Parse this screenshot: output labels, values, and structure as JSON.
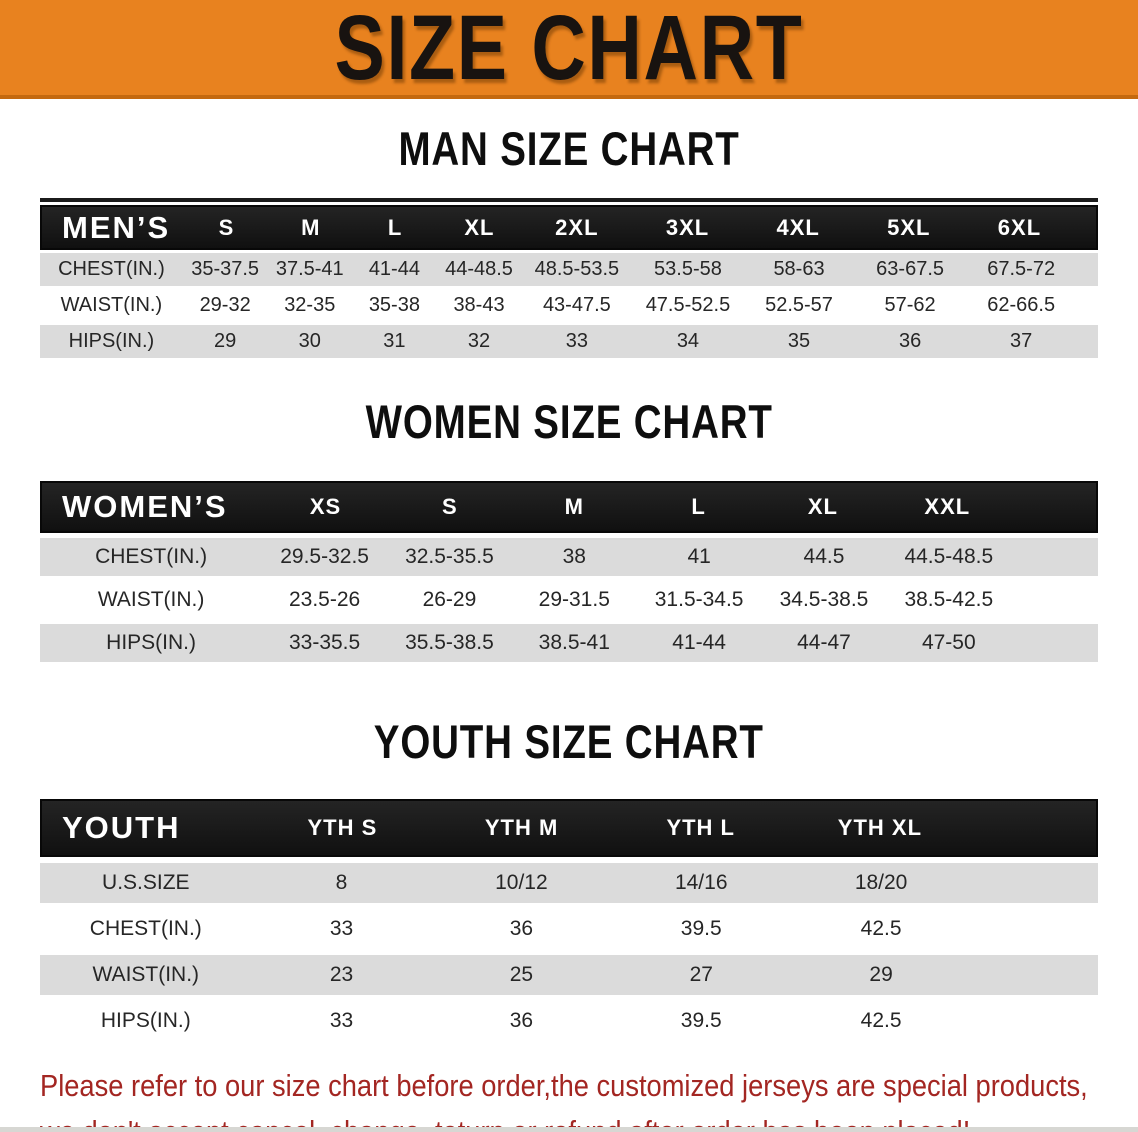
{
  "banner": {
    "title": "SIZE CHART"
  },
  "colors": {
    "banner_bg": "#E8821F",
    "banner_edge": "#C4690F",
    "header_bar": "#161616",
    "row_stripe": "#DBDBDB",
    "disclaimer_red": "#A32622"
  },
  "sections": {
    "men": {
      "heading": "MAN SIZE CHART",
      "table": {
        "label": "MEN’S",
        "sizes": [
          "S",
          "M",
          "L",
          "XL",
          "2XL",
          "3XL",
          "4XL",
          "5XL",
          "6XL"
        ],
        "rows": [
          {
            "label": "CHEST(IN.)",
            "values": [
              "35-37.5",
              "37.5-41",
              "41-44",
              "44-48.5",
              "48.5-53.5",
              "53.5-58",
              "58-63",
              "63-67.5",
              "67.5-72"
            ]
          },
          {
            "label": "WAIST(IN.)",
            "values": [
              "29-32",
              "32-35",
              "35-38",
              "38-43",
              "43-47.5",
              "47.5-52.5",
              "52.5-57",
              "57-62",
              "62-66.5"
            ]
          },
          {
            "label": "HIPS(IN.)",
            "values": [
              "29",
              "30",
              "31",
              "32",
              "33",
              "34",
              "35",
              "36",
              "37"
            ]
          }
        ]
      }
    },
    "women": {
      "heading": "WOMEN SIZE CHART",
      "table": {
        "label": "WOMEN’S",
        "sizes": [
          "XS",
          "S",
          "M",
          "L",
          "XL",
          "XXL"
        ],
        "rows": [
          {
            "label": "CHEST(IN.)",
            "values": [
              "29.5-32.5",
              "32.5-35.5",
              "38",
              "41",
              "44.5",
              "44.5-48.5"
            ]
          },
          {
            "label": "WAIST(IN.)",
            "values": [
              "23.5-26",
              "26-29",
              "29-31.5",
              "31.5-34.5",
              "34.5-38.5",
              "38.5-42.5"
            ]
          },
          {
            "label": "HIPS(IN.)",
            "values": [
              "33-35.5",
              "35.5-38.5",
              "38.5-41",
              "41-44",
              "44-47",
              "47-50"
            ]
          }
        ]
      }
    },
    "youth": {
      "heading": "YOUTH SIZE CHART",
      "table": {
        "label": "YOUTH",
        "sizes": [
          "YTH S",
          "YTH M",
          "YTH L",
          "YTH XL"
        ],
        "rows": [
          {
            "label": "U.S.SIZE",
            "values": [
              "8",
              "10/12",
              "14/16",
              "18/20"
            ]
          },
          {
            "label": "CHEST(IN.)",
            "values": [
              "33",
              "36",
              "39.5",
              "42.5"
            ]
          },
          {
            "label": "WAIST(IN.)",
            "values": [
              "23",
              "25",
              "27",
              "29"
            ]
          },
          {
            "label": "HIPS(IN.)",
            "values": [
              "33",
              "36",
              "39.5",
              "42.5"
            ]
          }
        ]
      }
    }
  },
  "disclaimer": {
    "line1": "Please refer to our size chart before order,the customized jerseys are special products,",
    "line2": "we don't accept cancel, change, teturn or refund after order has been placed!"
  }
}
